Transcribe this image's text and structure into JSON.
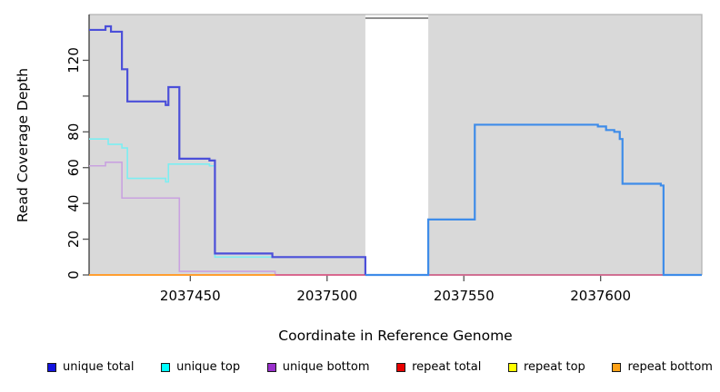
{
  "chart_data": {
    "type": "line",
    "subtype": "step-coverage",
    "title": "",
    "xlabel": "Coordinate in Reference Genome",
    "ylabel": "Read Coverage Depth",
    "xlim": [
      2037413,
      2037637
    ],
    "ylim": [
      0,
      145.6
    ],
    "grid": "off",
    "plot_bg_color": "#d9d9d9",
    "gap_band": {
      "start": 2037514,
      "end": 2037537,
      "color": "#ffffff",
      "edge_color": "#8f8f8f"
    },
    "x_ticks": [
      {
        "value": 2037450,
        "label": "2037450"
      },
      {
        "value": 2037500,
        "label": "2037500"
      },
      {
        "value": 2037550,
        "label": "2037550"
      },
      {
        "value": 2037600,
        "label": "2037600"
      }
    ],
    "y_ticks": [
      {
        "value": 0,
        "label": "0"
      },
      {
        "value": 20,
        "label": "20"
      },
      {
        "value": 40,
        "label": "40"
      },
      {
        "value": 60,
        "label": "60"
      },
      {
        "value": 80,
        "label": "80"
      },
      {
        "value": 100,
        "label": ""
      },
      {
        "value": 120,
        "label": "120"
      }
    ],
    "series": [
      {
        "name": "unique bottom",
        "color": "#c9a2e0",
        "width": 1.6,
        "steps": [
          [
            2037413,
            61
          ],
          [
            2037419,
            63
          ],
          [
            2037425,
            43
          ],
          [
            2037446,
            2
          ],
          [
            2037481,
            0
          ]
        ],
        "end_x": 2037637
      },
      {
        "name": "unique top",
        "color": "#7ceef2",
        "width": 1.6,
        "steps": [
          [
            2037413,
            76
          ],
          [
            2037420,
            73
          ],
          [
            2037425,
            71
          ],
          [
            2037427,
            54
          ],
          [
            2037441,
            52
          ],
          [
            2037442,
            62
          ],
          [
            2037457,
            61
          ],
          [
            2037459,
            10
          ],
          [
            2037514,
            0
          ]
        ],
        "end_x": 2037637
      },
      {
        "name": "repeat total",
        "color": "#e0517a",
        "width": 1.5,
        "steps": [
          [
            2037413,
            0
          ]
        ],
        "end_x": 2037637
      },
      {
        "name": "repeat top",
        "color": "#ffe400",
        "width": 1.5,
        "steps": [
          [
            2037413,
            0
          ]
        ],
        "end_x": 2037481
      },
      {
        "name": "repeat bottom",
        "color": "#ff9e30",
        "width": 2,
        "steps": [
          [
            2037413,
            0
          ]
        ],
        "end_x": 2037481
      },
      {
        "name": "unique total (left of gap)",
        "color": "#4b4fd9",
        "width": 2.2,
        "steps": [
          [
            2037413,
            137
          ],
          [
            2037419,
            139
          ],
          [
            2037421,
            136
          ],
          [
            2037425,
            115
          ],
          [
            2037427,
            97
          ],
          [
            2037441,
            95
          ],
          [
            2037442,
            105
          ],
          [
            2037446,
            65
          ],
          [
            2037457,
            64
          ],
          [
            2037459,
            12
          ],
          [
            2037480,
            10
          ],
          [
            2037514,
            0
          ]
        ],
        "end_x": 2037514
      },
      {
        "name": "unique total (right of gap)",
        "color": "#3e8ce9",
        "width": 2.2,
        "steps": [
          [
            2037514,
            0
          ],
          [
            2037537,
            31
          ],
          [
            2037554,
            84
          ],
          [
            2037599,
            83
          ],
          [
            2037602,
            81
          ],
          [
            2037605,
            80
          ],
          [
            2037607,
            76
          ],
          [
            2037608,
            51
          ],
          [
            2037622,
            50
          ],
          [
            2037623,
            0
          ]
        ],
        "end_x": 2037637
      }
    ],
    "legend": {
      "position": "bottom",
      "items": [
        {
          "label": "unique total",
          "color": "#1414e0"
        },
        {
          "label": "unique top",
          "color": "#00ffff"
        },
        {
          "label": "unique bottom",
          "color": "#9a30cc"
        },
        {
          "label": "repeat total",
          "color": "#e80000"
        },
        {
          "label": "repeat top",
          "color": "#ffff00"
        },
        {
          "label": "repeat bottom",
          "color": "#ffa217"
        }
      ]
    }
  }
}
